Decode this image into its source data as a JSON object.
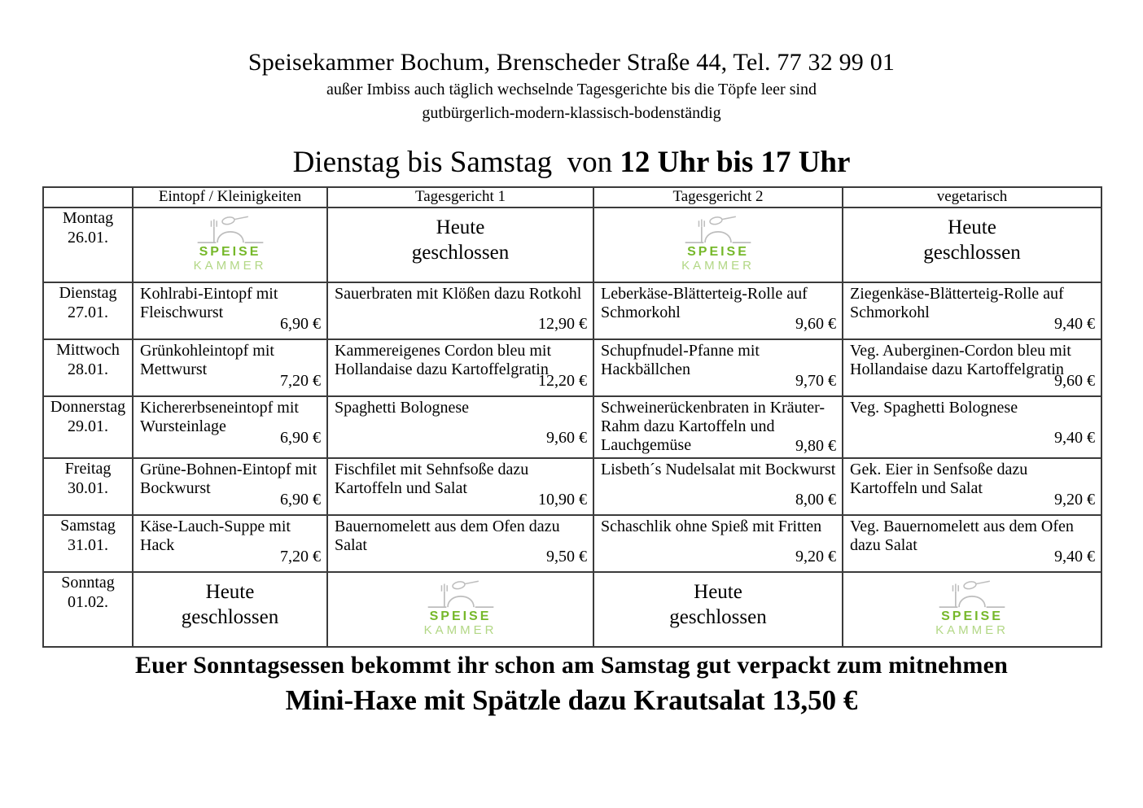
{
  "header": {
    "title": "Speisekammer Bochum, Brenscheder Straße 44, Tel. 77 32 99 01",
    "subtitle1": "außer Imbiss auch täglich wechselnde Tagesgerichte bis die Töpfe leer sind",
    "subtitle2": "gutbürgerlich-modern-klassisch-bodenständig",
    "hours_prefix": "Dienstag bis Samstag  von ",
    "hours_bold": "12 Uhr bis 17 Uhr"
  },
  "logo": {
    "line1": "SPEISE",
    "line2": "KAMMER",
    "color_primary": "#76b82a",
    "color_secondary": "#b2d785",
    "icon": "fork-cloche-spoon-icon"
  },
  "closed": {
    "line1": "Heute",
    "line2": "geschlossen"
  },
  "table": {
    "columns": [
      "",
      "Eintopf  /  Kleinigkeiten",
      "Tagesgericht 1",
      "Tagesgericht 2",
      "vegetarisch"
    ],
    "rows": [
      {
        "day": "Montag",
        "date": "26.01.",
        "cells": [
          {
            "type": "logo"
          },
          {
            "type": "closed"
          },
          {
            "type": "logo"
          },
          {
            "type": "closed"
          }
        ]
      },
      {
        "day": "Dienstag",
        "date": "27.01.",
        "cells": [
          {
            "type": "dish",
            "text": "Kohlrabi-Eintopf mit Fleischwurst",
            "price": "6,90 €"
          },
          {
            "type": "dish",
            "text": "Sauerbraten mit Klößen dazu Rotkohl",
            "price": "12,90 €"
          },
          {
            "type": "dish",
            "text": "Leberkäse-Blätterteig-Rolle auf Schmorkohl",
            "price": "9,60 €"
          },
          {
            "type": "dish",
            "text": "Ziegenkäse-Blätterteig-Rolle auf Schmorkohl",
            "price": "9,40 €"
          }
        ]
      },
      {
        "day": "Mittwoch",
        "date": "28.01.",
        "cells": [
          {
            "type": "dish",
            "text": "Grünkohleintopf mit Mettwurst",
            "price": "7,20 €"
          },
          {
            "type": "dish",
            "text": "Kammereigenes Cordon bleu mit Hollandaise dazu Kartoffelgratin",
            "price": "12,20 €"
          },
          {
            "type": "dish",
            "text": "Schupfnudel-Pfanne mit Hackbällchen",
            "price": "9,70 €"
          },
          {
            "type": "dish",
            "text": "Veg. Auberginen-Cordon bleu mit Hollandaise dazu Kartoffelgratin",
            "price": "9,60 €"
          }
        ]
      },
      {
        "day": "Donnerstag",
        "date": "29.01.",
        "cells": [
          {
            "type": "dish",
            "text": "Kichererbseneintopf mit Wursteinlage",
            "price": "6,90 €"
          },
          {
            "type": "dish",
            "text": "Spaghetti Bolognese",
            "price": "9,60 €"
          },
          {
            "type": "dish",
            "text": "Schweinerückenbraten in Kräuter-Rahm dazu Kartoffeln und Lauchgemüse",
            "price": "9,80 €"
          },
          {
            "type": "dish",
            "text": "Veg. Spaghetti Bolognese",
            "price": "9,40 €"
          }
        ]
      },
      {
        "day": "Freitag",
        "date": "30.01.",
        "cells": [
          {
            "type": "dish",
            "text": "Grüne-Bohnen-Eintopf mit Bockwurst",
            "price": "6,90 €"
          },
          {
            "type": "dish",
            "text": "Fischfilet mit Sehnfsoße dazu Kartoffeln und Salat",
            "price": "10,90 €"
          },
          {
            "type": "dish",
            "text": "Lisbeth´s Nudelsalat mit Bockwurst",
            "price": "8,00 €"
          },
          {
            "type": "dish",
            "text": "Gek. Eier in Senfsoße dazu Kartoffeln und Salat",
            "price": "9,20 €"
          }
        ]
      },
      {
        "day": "Samstag",
        "date": "31.01.",
        "cells": [
          {
            "type": "dish",
            "text": "Käse-Lauch-Suppe mit Hack",
            "price": "7,20 €"
          },
          {
            "type": "dish",
            "text": "Bauernomelett aus dem Ofen dazu Salat",
            "price": "9,50 €"
          },
          {
            "type": "dish",
            "text": "Schaschlik ohne Spieß mit Fritten",
            "price": "9,20 €"
          },
          {
            "type": "dish",
            "text": "Veg. Bauernomelett aus dem Ofen dazu Salat",
            "price": "9,40 €"
          }
        ]
      },
      {
        "day": "Sonntag",
        "date": "01.02.",
        "cells": [
          {
            "type": "closed"
          },
          {
            "type": "logo"
          },
          {
            "type": "closed"
          },
          {
            "type": "logo"
          }
        ]
      }
    ]
  },
  "footer": {
    "line1": "Euer Sonntagsessen bekommt ihr schon am Samstag gut verpackt zum mitnehmen",
    "line2": "Mini-Haxe mit Spätzle dazu Krautsalat 13,50 €"
  }
}
